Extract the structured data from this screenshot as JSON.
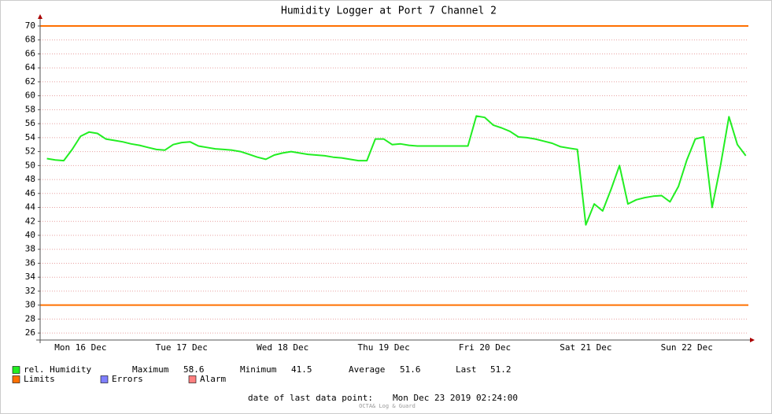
{
  "chart_data": {
    "type": "line",
    "title": "Humidity Logger at Port 7 Channel 2",
    "categories": [
      null,
      null,
      null,
      null,
      "Mon 16 Dec",
      null,
      null,
      null,
      null,
      null,
      null,
      null,
      null,
      null,
      null,
      null,
      "Tue 17 Dec",
      null,
      null,
      null,
      null,
      null,
      null,
      null,
      null,
      null,
      null,
      null,
      "Wed 18 Dec",
      null,
      null,
      null,
      null,
      null,
      null,
      null,
      null,
      null,
      null,
      null,
      "Thu 19 Dec",
      null,
      null,
      null,
      null,
      null,
      null,
      null,
      null,
      null,
      null,
      null,
      "Fri 20 Dec",
      null,
      null,
      null,
      null,
      null,
      null,
      null,
      null,
      null,
      null,
      null,
      "Sat 21 Dec",
      null,
      null,
      null,
      null,
      null,
      null,
      null,
      null,
      null,
      null,
      null,
      "Sun 22 Dec",
      null,
      null,
      null,
      null,
      null,
      null,
      null
    ],
    "series": [
      {
        "name": "rel. Humidity",
        "color": "#22ee22",
        "values": [
          51.0,
          50.8,
          50.7,
          52.3,
          54.2,
          54.8,
          54.6,
          53.8,
          53.6,
          53.4,
          53.1,
          52.9,
          52.6,
          52.3,
          52.2,
          53.0,
          53.3,
          53.4,
          52.8,
          52.6,
          52.4,
          52.3,
          52.2,
          52.0,
          51.6,
          51.2,
          50.9,
          51.5,
          51.8,
          52.0,
          51.8,
          51.6,
          51.5,
          51.4,
          51.2,
          51.1,
          50.9,
          50.7,
          50.7,
          53.8,
          53.8,
          53.0,
          53.1,
          52.9,
          52.8,
          52.8,
          52.8,
          52.8,
          52.8,
          52.8,
          52.8,
          57.1,
          56.9,
          55.8,
          55.4,
          54.9,
          54.1,
          54.0,
          53.8,
          53.5,
          53.2,
          52.7,
          52.5,
          52.3,
          41.5,
          44.5,
          43.5,
          46.6,
          50.0,
          44.5,
          45.1,
          45.4,
          45.6,
          45.7,
          44.8,
          47.0,
          50.8,
          53.8,
          54.1,
          44.0,
          50.0,
          57.0,
          53.0,
          51.4
        ]
      }
    ],
    "limits": {
      "name": "Limits",
      "color": "#ff7000",
      "values": [
        30,
        70
      ]
    },
    "other_legend": [
      {
        "name": "Errors",
        "color": "#7f7fff"
      },
      {
        "name": "Alarm",
        "color": "#ff7f7f"
      }
    ],
    "stats": [
      {
        "label": "Maximum",
        "value": 58.6
      },
      {
        "label": "Minimum",
        "value": 41.5
      },
      {
        "label": "Average",
        "value": 51.6
      },
      {
        "label": "Last",
        "value": 51.2
      }
    ],
    "footer": {
      "label": "date of last data point:",
      "value": "Mon Dec 23 2019 02:24:00"
    },
    "watermark": "OCTA& Log & Guard",
    "ylim": [
      25,
      70
    ],
    "yticks": [
      26,
      28,
      30,
      32,
      34,
      36,
      38,
      40,
      42,
      44,
      46,
      48,
      50,
      52,
      54,
      56,
      58,
      60,
      62,
      64,
      66,
      68,
      70
    ],
    "grid": true
  }
}
